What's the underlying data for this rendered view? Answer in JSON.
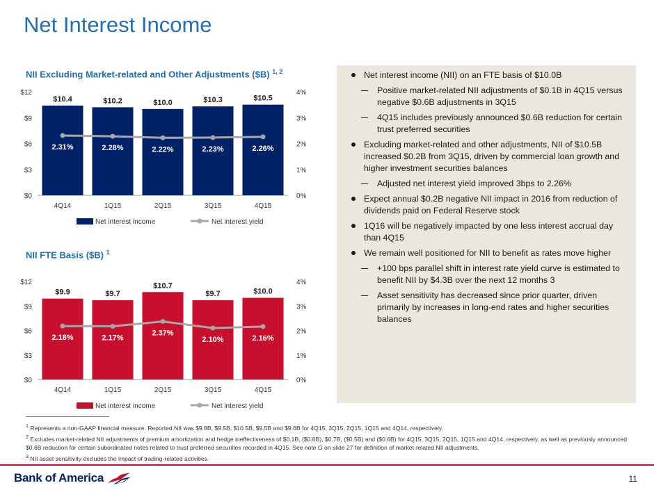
{
  "slide": {
    "title": "Net Interest Income",
    "page_number": "11"
  },
  "colors": {
    "title_blue": "#1f6fb5",
    "navy_bar": "#012169",
    "red_bar": "#c8102e",
    "line_gray": "#a7a7a7",
    "panel_bg": "#ebe7df"
  },
  "chart_data": [
    {
      "type": "bar",
      "title": "NII Excluding Market-related and Other Adjustments ($B)",
      "title_sup": "1, 2",
      "categories": [
        "4Q14",
        "1Q15",
        "2Q15",
        "3Q15",
        "4Q15"
      ],
      "series": [
        {
          "name": "Net interest income",
          "axis": "left",
          "type": "bar",
          "values": [
            10.4,
            10.2,
            10.0,
            10.3,
            10.5
          ],
          "labels": [
            "$10.4",
            "$10.2",
            "$10.0",
            "$10.3",
            "$10.5"
          ]
        },
        {
          "name": "Net interest yield",
          "axis": "right",
          "type": "line",
          "values": [
            2.31,
            2.28,
            2.22,
            2.23,
            2.26
          ],
          "labels": [
            "2.31%",
            "2.28%",
            "2.22%",
            "2.23%",
            "2.26%"
          ]
        }
      ],
      "y_left": {
        "range": [
          0,
          12
        ],
        "ticks": [
          "$0",
          "$3",
          "$6",
          "$9",
          "$12"
        ]
      },
      "y_right": {
        "range": [
          0,
          4
        ],
        "ticks": [
          "0%",
          "1%",
          "2%",
          "3%",
          "4%"
        ]
      },
      "legend": "bottom",
      "grid": false
    },
    {
      "type": "bar",
      "title": "NII FTE Basis ($B)",
      "title_sup": "1",
      "categories": [
        "4Q14",
        "1Q15",
        "2Q15",
        "3Q15",
        "4Q15"
      ],
      "series": [
        {
          "name": "Net interest income",
          "axis": "left",
          "type": "bar",
          "values": [
            9.9,
            9.7,
            10.7,
            9.7,
            10.0
          ],
          "labels": [
            "$9.9",
            "$9.7",
            "$10.7",
            "$9.7",
            "$10.0"
          ]
        },
        {
          "name": "Net interest yield",
          "axis": "right",
          "type": "line",
          "values": [
            2.18,
            2.17,
            2.37,
            2.1,
            2.16
          ],
          "labels": [
            "2.18%",
            "2.17%",
            "2.37%",
            "2.10%",
            "2.16%"
          ]
        }
      ],
      "y_left": {
        "range": [
          0,
          12
        ],
        "ticks": [
          "$0",
          "$3",
          "$6",
          "$9",
          "$12"
        ]
      },
      "y_right": {
        "range": [
          0,
          4
        ],
        "ticks": [
          "0%",
          "1%",
          "2%",
          "3%",
          "4%"
        ]
      },
      "legend": "bottom",
      "grid": false
    }
  ],
  "bullets": [
    {
      "level": 1,
      "text": "Net interest income (NII) on an FTE basis of $10.0B"
    },
    {
      "level": 2,
      "text": "Positive market-related NII adjustments of $0.1B in 4Q15 versus negative $0.6B adjustments in 3Q15"
    },
    {
      "level": 2,
      "text": "4Q15 includes previously announced $0.6B reduction for certain trust preferred securities"
    },
    {
      "level": 1,
      "text": "Excluding market-related and other adjustments, NII of $10.5B increased $0.2B from 3Q15, driven by commercial loan growth and higher investment securities balances"
    },
    {
      "level": 2,
      "text": "Adjusted net interest yield improved 3bps to 2.26%"
    },
    {
      "level": 1,
      "text": "Expect annual $0.2B negative NII impact in 2016 from reduction of dividends paid on Federal Reserve stock"
    },
    {
      "level": 1,
      "text": "1Q16 will be negatively impacted by one less interest accrual day than 4Q15"
    },
    {
      "level": 1,
      "text": "We remain well positioned for NII to benefit as rates move higher"
    },
    {
      "level": 2,
      "text": "+100 bps parallel shift in interest rate yield curve is estimated to benefit NII by $4.3B over the next 12 months 3"
    },
    {
      "level": 2,
      "text": "Asset sensitivity has decreased since prior quarter, driven primarily by increases in long-end rates and higher securities balances"
    }
  ],
  "footnotes": [
    {
      "num": "1",
      "text": "Represents a non-GAAP financial measure. Reported NII was $9.8B, $9.5B, $10.5B, $9.5B and $9.6B for 4Q15, 3Q15, 2Q15, 1Q15 and 4Q14, respectively."
    },
    {
      "num": "2",
      "text": "Excludes market-related NII adjustments of premium amortization and hedge ineffectiveness of $0.1B, ($0.6B), $0.7B, ($0.5B) and ($0.6B) for 4Q15, 3Q15, 2Q15, 1Q15 and 4Q14, respectively, as well as previously announced $0.6B reduction for certain subordinated notes related to trust preferred securities recorded in 4Q15. See note G on slide 27 for definition of market-related NII adjustments."
    },
    {
      "num": "3",
      "text": "NII asset sensitivity excludes the impact of trading-related activities."
    }
  ],
  "brand": {
    "logo_text": "Bank of America",
    "logo_icon": "flag-icon"
  }
}
